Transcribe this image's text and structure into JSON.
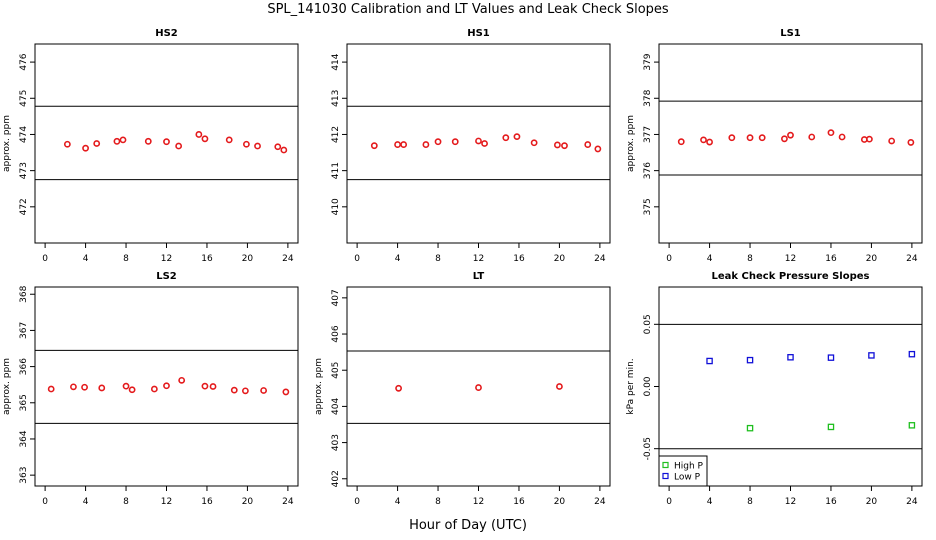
{
  "title": "SPL_141030  Calibration and LT Values and Leak Check Slopes",
  "xlabel": "Hour of Day (UTC)",
  "colors": {
    "red": "#e41a1c",
    "green": "#1fbf1f",
    "blue": "#1010d8",
    "axis": "#000000"
  },
  "chart_data": [
    {
      "type": "scatter",
      "title": "HS2",
      "ylabel": "approx. ppm",
      "xlim": [
        -1,
        25
      ],
      "ylim": [
        471,
        476.5
      ],
      "xticks": [
        0,
        4,
        8,
        12,
        16,
        20,
        24
      ],
      "yticks": [
        472,
        473,
        474,
        475,
        476
      ],
      "hlines": [
        472.75,
        474.78
      ],
      "series": [
        {
          "color": "red",
          "marker": "circle",
          "points": [
            [
              2.2,
              473.73
            ],
            [
              4.0,
              473.62
            ],
            [
              5.1,
              473.75
            ],
            [
              7.1,
              473.81
            ],
            [
              7.7,
              473.85
            ],
            [
              10.2,
              473.81
            ],
            [
              12.0,
              473.8
            ],
            [
              13.2,
              473.68
            ],
            [
              15.2,
              474.0
            ],
            [
              15.8,
              473.88
            ],
            [
              18.2,
              473.85
            ],
            [
              19.9,
              473.73
            ],
            [
              21.0,
              473.68
            ],
            [
              23.0,
              473.66
            ],
            [
              23.6,
              473.57
            ]
          ]
        }
      ]
    },
    {
      "type": "scatter",
      "title": "HS1",
      "ylabel": "",
      "xlim": [
        -1,
        25
      ],
      "ylim": [
        409,
        414.5
      ],
      "xticks": [
        0,
        4,
        8,
        12,
        16,
        20,
        24
      ],
      "yticks": [
        410,
        411,
        412,
        413,
        414
      ],
      "hlines": [
        410.75,
        412.78
      ],
      "series": [
        {
          "color": "red",
          "marker": "circle",
          "points": [
            [
              1.7,
              411.69
            ],
            [
              4.0,
              411.72
            ],
            [
              4.6,
              411.72
            ],
            [
              6.8,
              411.72
            ],
            [
              8.0,
              411.8
            ],
            [
              9.7,
              411.8
            ],
            [
              12.0,
              411.82
            ],
            [
              12.6,
              411.75
            ],
            [
              14.7,
              411.91
            ],
            [
              15.8,
              411.94
            ],
            [
              17.5,
              411.77
            ],
            [
              19.8,
              411.71
            ],
            [
              20.5,
              411.69
            ],
            [
              22.8,
              411.72
            ],
            [
              23.8,
              411.6
            ]
          ]
        }
      ]
    },
    {
      "type": "scatter",
      "title": "LS1",
      "ylabel": "approx. ppm",
      "xlim": [
        -1,
        25
      ],
      "ylim": [
        374,
        379.5
      ],
      "xticks": [
        0,
        4,
        8,
        12,
        16,
        20,
        24
      ],
      "yticks": [
        375,
        376,
        377,
        378,
        379
      ],
      "hlines": [
        375.88,
        377.92
      ],
      "series": [
        {
          "color": "red",
          "marker": "circle",
          "points": [
            [
              1.2,
              376.8
            ],
            [
              3.4,
              376.85
            ],
            [
              4.0,
              376.79
            ],
            [
              6.2,
              376.91
            ],
            [
              8.0,
              376.91
            ],
            [
              9.2,
              376.91
            ],
            [
              11.4,
              376.88
            ],
            [
              12.0,
              376.98
            ],
            [
              14.1,
              376.93
            ],
            [
              16.0,
              377.05
            ],
            [
              17.1,
              376.93
            ],
            [
              19.3,
              376.86
            ],
            [
              19.8,
              376.87
            ],
            [
              22.0,
              376.82
            ],
            [
              23.9,
              376.78
            ]
          ]
        }
      ]
    },
    {
      "type": "scatter",
      "title": "LS2",
      "ylabel": "approx. ppm",
      "xlim": [
        -1,
        25
      ],
      "ylim": [
        362.7,
        368.2
      ],
      "xticks": [
        0,
        4,
        8,
        12,
        16,
        20,
        24
      ],
      "yticks": [
        363,
        364,
        365,
        366,
        367,
        368
      ],
      "hlines": [
        364.43,
        366.45
      ],
      "series": [
        {
          "color": "red",
          "marker": "circle",
          "points": [
            [
              0.6,
              365.38
            ],
            [
              2.8,
              365.44
            ],
            [
              3.9,
              365.43
            ],
            [
              5.6,
              365.41
            ],
            [
              8.0,
              365.46
            ],
            [
              8.6,
              365.36
            ],
            [
              10.8,
              365.38
            ],
            [
              12.0,
              365.47
            ],
            [
              13.5,
              365.62
            ],
            [
              15.8,
              365.46
            ],
            [
              16.6,
              365.45
            ],
            [
              18.7,
              365.35
            ],
            [
              19.8,
              365.33
            ],
            [
              21.6,
              365.34
            ],
            [
              23.8,
              365.3
            ]
          ]
        }
      ]
    },
    {
      "type": "scatter",
      "title": "LT",
      "ylabel": "approx. ppm",
      "xlim": [
        -1,
        25
      ],
      "ylim": [
        401.8,
        407.3
      ],
      "xticks": [
        0,
        4,
        8,
        12,
        16,
        20,
        24
      ],
      "yticks": [
        402,
        403,
        404,
        405,
        406,
        407
      ],
      "hlines": [
        403.53,
        405.53
      ],
      "series": [
        {
          "color": "red",
          "marker": "circle",
          "points": [
            [
              4.1,
              404.5
            ],
            [
              12.0,
              404.52
            ],
            [
              20.0,
              404.55
            ]
          ]
        }
      ]
    },
    {
      "type": "scatter",
      "title": "Leak Check Pressure Slopes",
      "ylabel": "kPa per min.",
      "xlim": [
        -1,
        25
      ],
      "ylim": [
        -0.08,
        0.08
      ],
      "xticks": [
        0,
        4,
        8,
        12,
        16,
        20,
        24
      ],
      "yticks": [
        -0.05,
        0.0,
        0.05
      ],
      "ytick_labels": [
        "-0.05",
        "0.00",
        "0.05"
      ],
      "hlines": [
        -0.05,
        0.05
      ],
      "legend": {
        "position": "bottom-left",
        "entries": [
          "High P",
          "Low P"
        ]
      },
      "series": [
        {
          "name": "High P",
          "color": "green",
          "marker": "square",
          "points": [
            [
              8.0,
              -0.0335
            ],
            [
              16.0,
              -0.0325
            ],
            [
              24.0,
              -0.0312
            ]
          ]
        },
        {
          "name": "Low P",
          "color": "blue",
          "marker": "square",
          "points": [
            [
              4.0,
              0.0205
            ],
            [
              8.0,
              0.0212
            ],
            [
              12.0,
              0.0235
            ],
            [
              16.0,
              0.0232
            ],
            [
              20.0,
              0.025
            ],
            [
              24.0,
              0.026
            ]
          ]
        }
      ]
    }
  ]
}
